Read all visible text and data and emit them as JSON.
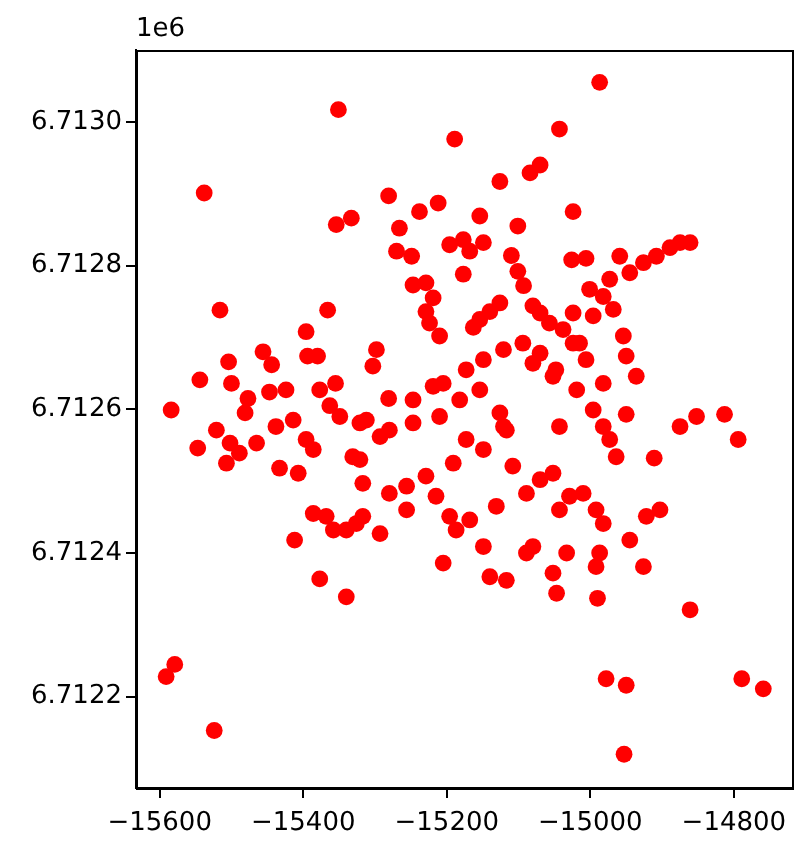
{
  "chart_data": {
    "type": "scatter",
    "color": "#ff0000",
    "marker": "circle",
    "x": [
      -15351,
      -15538,
      -15354,
      -15333,
      -15516,
      -15366,
      -15396,
      -15456,
      -15444,
      -15504,
      -15500,
      -15544,
      -15394,
      -15380,
      -15584,
      -15477,
      -15447,
      -15424,
      -15481,
      -15377,
      -15355,
      -15363,
      -15521,
      -15043,
      -15189,
      -15070,
      -15084,
      -15126,
      -15281,
      -15212,
      -15238,
      -15154,
      -15024,
      -15266,
      -15101,
      -15270,
      -15249,
      -15196,
      -15177,
      -15168,
      -15149,
      -15110,
      -15101,
      -15093,
      -15080,
      -15026,
      -15177,
      -15247,
      -15229,
      -15219,
      -15229,
      -15224,
      -15210,
      -15126,
      -15140,
      -15154,
      -15163,
      -15070,
      -15057,
      -15038,
      -15024,
      -15024,
      -15298,
      -15303,
      -15070,
      -15080,
      -15048,
      -15173,
      -15149,
      -15121,
      -15094,
      -15281,
      -15247,
      -15219,
      -15205,
      -15052,
      -15126,
      -15121,
      -15043,
      -15312,
      -15182,
      -15154,
      -14987,
      -15006,
      -14959,
      -14945,
      -14926,
      -14908,
      -14889,
      -14875,
      -14861,
      -14973,
      -15001,
      -14982,
      -14968,
      -14996,
      -15015,
      -15006,
      -14954,
      -14950,
      -14936,
      -14982,
      -15019,
      -14996,
      -14950,
      -14875,
      -14852,
      -14813,
      -15547,
      -15502,
      -15489,
      -15507,
      -15465,
      -15433,
      -15407,
      -15438,
      -15414,
      -15396,
      -15386,
      -15386,
      -15368,
      -15358,
      -15340,
      -15326,
      -15412,
      -15377,
      -15340,
      -15591,
      -15579,
      -15524,
      -15349,
      -15331,
      -15317,
      -15321,
      -15293,
      -15321,
      -15280,
      -15256,
      -15229,
      -15191,
      -15280,
      -15247,
      -15210,
      -15173,
      -15149,
      -15117,
      -15256,
      -15215,
      -15196,
      -15187,
      -15168,
      -15149,
      -15131,
      -15205,
      -15140,
      -15117,
      -15089,
      -15080,
      -15052,
      -15047,
      -15317,
      -15293,
      -15108,
      -15089,
      -15070,
      -15043,
      -15029,
      -15033,
      -15052,
      -14982,
      -14973,
      -14964,
      -14794,
      -14911,
      -15010,
      -14992,
      -14982,
      -14922,
      -14903,
      -14945,
      -14987,
      -14992,
      -14926,
      -14990,
      -14861,
      -14978,
      -14950,
      -14789,
      -14759,
      -14953
    ],
    "values": [
      6.713017,
      6.712901,
      6.712857,
      6.712866,
      6.712738,
      6.712738,
      6.712708,
      6.71268,
      6.712662,
      6.712666,
      6.712636,
      6.712641,
      6.712674,
      6.712674,
      6.712599,
      6.712615,
      6.712624,
      6.712627,
      6.712595,
      6.712627,
      6.712636,
      6.712605,
      6.712571,
      6.71299,
      6.712976,
      6.71294,
      6.712929,
      6.712917,
      6.712897,
      6.712887,
      6.712875,
      6.712869,
      6.712875,
      6.712852,
      6.712855,
      6.71282,
      6.712813,
      6.712829,
      6.712836,
      6.71282,
      6.712832,
      6.712814,
      6.712792,
      6.712772,
      6.712744,
      6.712808,
      6.712788,
      6.712773,
      6.712776,
      6.712755,
      6.712736,
      6.71272,
      6.712702,
      6.712748,
      6.712736,
      6.712725,
      6.712714,
      6.712734,
      6.71272,
      6.712711,
      6.712734,
      6.712692,
      6.712683,
      6.71266,
      6.712678,
      6.712664,
      6.712655,
      6.712655,
      6.712669,
      6.712683,
      6.712692,
      6.712615,
      6.712613,
      6.712632,
      6.712636,
      6.712646,
      6.712595,
      6.712576,
      6.712576,
      6.712585,
      6.712613,
      6.712627,
      6.713055,
      6.71281,
      6.712813,
      6.71279,
      6.712804,
      6.712813,
      6.712825,
      6.712832,
      6.712832,
      6.712781,
      6.712767,
      6.712757,
      6.712739,
      6.71273,
      6.712692,
      6.712669,
      6.712702,
      6.712674,
      6.712646,
      6.712636,
      6.712627,
      6.712599,
      6.712593,
      6.712576,
      6.71259,
      6.712593,
      6.712546,
      6.712553,
      6.712539,
      6.712525,
      6.712553,
      6.712518,
      6.712511,
      6.712576,
      6.712585,
      6.712558,
      6.712544,
      6.712455,
      6.712451,
      6.712432,
      6.712432,
      6.712441,
      6.712418,
      6.712364,
      6.712339,
      6.712228,
      6.712245,
      6.712153,
      6.71259,
      6.712534,
      6.712497,
      6.712581,
      6.712562,
      6.71253,
      6.712483,
      6.712493,
      6.712507,
      6.712525,
      6.712571,
      6.712581,
      6.71259,
      6.712558,
      6.712544,
      6.712571,
      6.71246,
      6.712479,
      6.712451,
      6.712432,
      6.712446,
      6.712409,
      6.712465,
      6.712386,
      6.712367,
      6.712362,
      6.7124,
      6.712409,
      6.712372,
      6.712344,
      6.712451,
      6.712427,
      6.712521,
      6.712483,
      6.712502,
      6.71246,
      6.712479,
      6.7124,
      6.712511,
      6.712576,
      6.712558,
      6.712534,
      6.712558,
      6.712532,
      6.712483,
      6.71246,
      6.712441,
      6.712451,
      6.71246,
      6.712418,
      6.7124,
      6.712381,
      6.712381,
      6.712337,
      6.712321,
      6.712225,
      6.712216,
      6.712225,
      6.712211,
      6.71212
    ],
    "xlim": [
      -15633,
      -14719
    ],
    "ylim": [
      6.712073,
      6.7131
    ],
    "xticks": [
      {
        "value": -15600,
        "label": "−15600"
      },
      {
        "value": -15400,
        "label": "−15400"
      },
      {
        "value": -15200,
        "label": "−15200"
      },
      {
        "value": -15000,
        "label": "−15000"
      },
      {
        "value": -14800,
        "label": "−14800"
      }
    ],
    "yticks": [
      6.7122,
      6.7124,
      6.7126,
      6.7128,
      {
        "value": 6.713,
        "label": "6.7130"
      }
    ],
    "annotations": [
      "1e6"
    ]
  }
}
